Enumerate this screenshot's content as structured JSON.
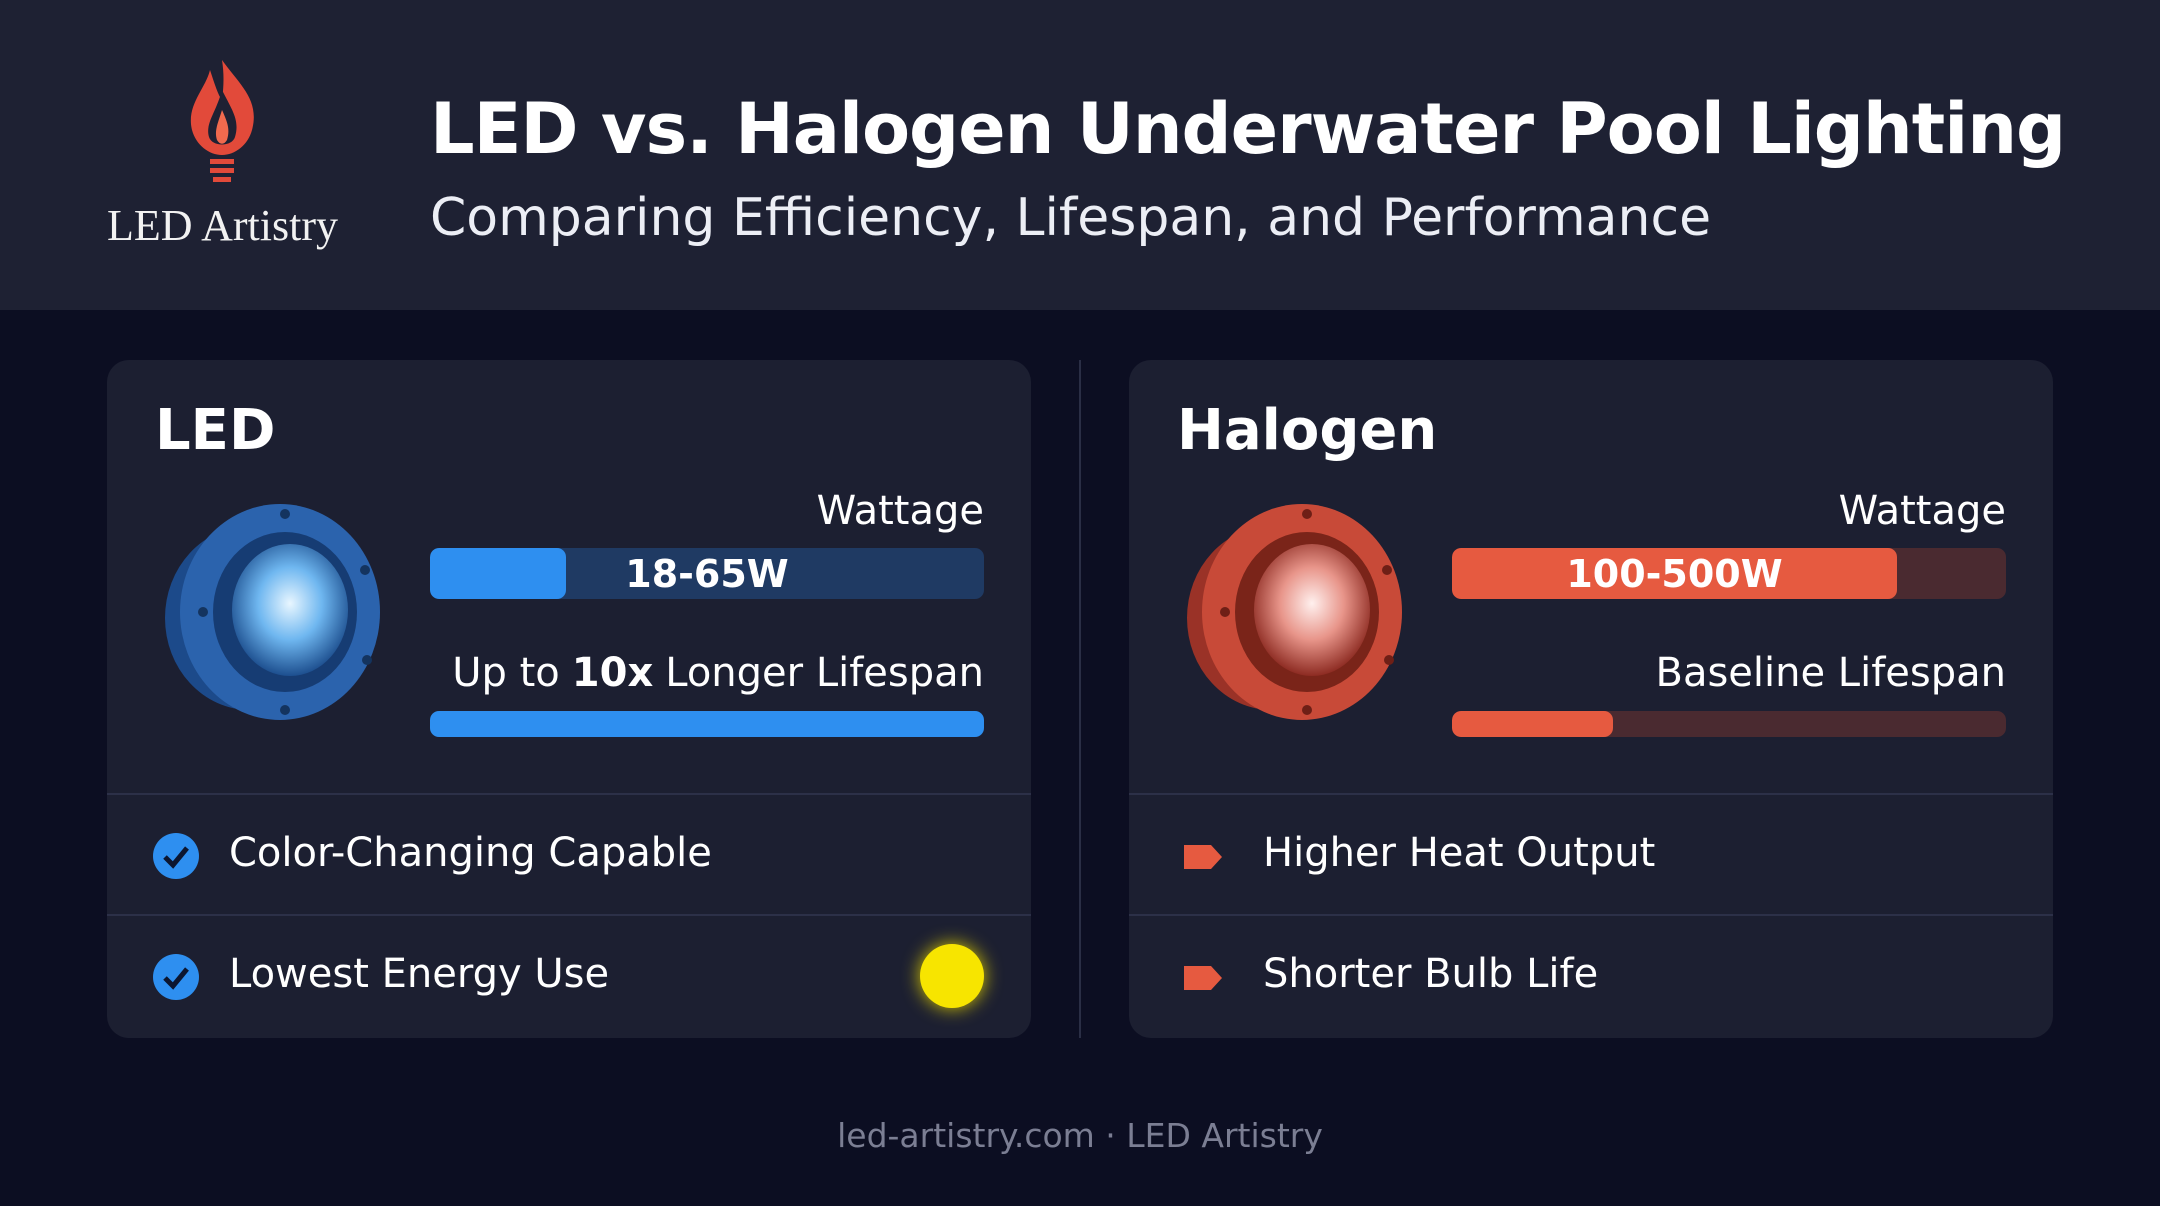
{
  "header": {
    "logo_text": "LED Artistry",
    "title": "LED vs. Halogen Underwater Pool Lighting",
    "subtitle": "Comparing Efficiency, Lifespan, and Performance"
  },
  "panels": [
    {
      "title": "LED",
      "wattage_label": "Wattage",
      "wattage_value": "18-65W",
      "lifespan_label": [
        "Up to",
        "10x",
        "Longer Lifespan"
      ],
      "features": [
        "Color-Changing Capable",
        "Lowest Energy Use"
      ]
    },
    {
      "title": "Halogen",
      "wattage_label": "Wattage",
      "wattage_value": "100-500W",
      "lifespan_label": [
        "Baseline Lifespan"
      ],
      "features": [
        "Higher Heat Output",
        "Shorter Bulb Life"
      ]
    }
  ],
  "footer": "led-artistry.com · LED Artistry"
}
